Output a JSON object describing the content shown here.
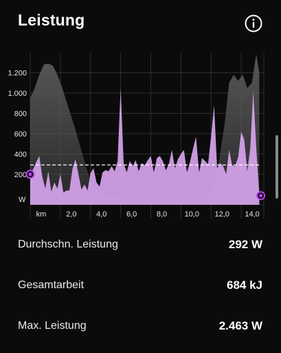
{
  "header": {
    "title": "Leistung",
    "info_icon": "info-circle-icon"
  },
  "chart_data": {
    "type": "area",
    "ylabel": "W",
    "xlabel": "km",
    "xlim": [
      0,
      15.5
    ],
    "ylim": [
      -100,
      1400
    ],
    "x_ticks": [
      0,
      2,
      4,
      6,
      8,
      10,
      12,
      14
    ],
    "x_tick_labels": [
      "km",
      "2,0",
      "4,0",
      "6,0",
      "8,0",
      "10,0",
      "12,0",
      "14,0"
    ],
    "y_ticks": [
      200,
      400,
      600,
      800,
      1000,
      1200
    ],
    "y_tick_labels": [
      "200",
      "400",
      "600",
      "800",
      "1.000",
      "1.200"
    ],
    "grid": true,
    "average_line": 292,
    "colors": {
      "power": "#d7a4ee",
      "elevation": "#5b5b5b",
      "marker": "#b845f0",
      "grid": "#2f2f2f",
      "average": "#ffffff"
    },
    "series": [
      {
        "kind": "power",
        "x": [
          0.0,
          0.2,
          0.4,
          0.6,
          0.8,
          1.0,
          1.2,
          1.4,
          1.6,
          1.8,
          2.0,
          2.2,
          2.4,
          2.6,
          2.8,
          3.0,
          3.2,
          3.4,
          3.6,
          3.8,
          4.0,
          4.2,
          4.4,
          4.6,
          4.8,
          5.0,
          5.2,
          5.4,
          5.6,
          5.8,
          6.0,
          6.2,
          6.4,
          6.6,
          6.8,
          7.0,
          7.2,
          7.4,
          7.6,
          7.8,
          8.0,
          8.2,
          8.4,
          8.6,
          8.8,
          9.0,
          9.2,
          9.4,
          9.6,
          9.8,
          10.0,
          10.2,
          10.4,
          10.6,
          10.8,
          11.0,
          11.2,
          11.4,
          11.6,
          11.8,
          12.0,
          12.2,
          12.4,
          12.6,
          12.8,
          13.0,
          13.2,
          13.4,
          13.6,
          13.8,
          14.0,
          14.2,
          14.4,
          14.6,
          14.8,
          15.0,
          15.2
        ],
        "values": [
          200,
          250,
          320,
          380,
          180,
          60,
          230,
          30,
          120,
          60,
          200,
          20,
          40,
          40,
          250,
          350,
          200,
          50,
          100,
          40,
          210,
          260,
          120,
          80,
          220,
          240,
          230,
          280,
          230,
          330,
          1050,
          310,
          220,
          330,
          280,
          340,
          230,
          310,
          290,
          340,
          380,
          220,
          360,
          380,
          330,
          240,
          300,
          440,
          260,
          350,
          400,
          440,
          220,
          320,
          450,
          570,
          220,
          360,
          330,
          300,
          570,
          880,
          260,
          310,
          280,
          200,
          440,
          290,
          280,
          370,
          620,
          540,
          230,
          460,
          1020,
          460,
          10
        ]
      },
      {
        "kind": "elevation",
        "x": [
          0.0,
          0.3,
          0.6,
          0.9,
          1.2,
          1.5,
          1.8,
          2.1,
          2.4,
          2.7,
          3.0,
          3.3,
          3.6,
          3.9,
          4.2,
          4.5,
          4.8,
          5.1,
          5.4,
          5.7,
          6.0,
          6.3,
          6.6,
          6.9,
          7.2,
          7.5,
          7.8,
          8.1,
          8.4,
          8.7,
          9.0,
          9.3,
          9.6,
          9.9,
          10.2,
          10.5,
          10.8,
          11.1,
          11.4,
          11.7,
          12.0,
          12.3,
          12.6,
          12.9,
          13.2,
          13.5,
          13.8,
          14.1,
          14.4,
          14.7,
          15.0,
          15.2
        ],
        "values": [
          950,
          1050,
          1180,
          1280,
          1290,
          1270,
          1180,
          1060,
          920,
          780,
          640,
          480,
          330,
          180,
          70,
          20,
          10,
          0,
          -10,
          -20,
          -30,
          -40,
          -40,
          -40,
          -40,
          -40,
          -40,
          -40,
          -40,
          -40,
          -40,
          -40,
          -40,
          -40,
          -40,
          -40,
          -40,
          -40,
          -40,
          -40,
          0,
          150,
          400,
          700,
          1100,
          1180,
          1120,
          1180,
          1050,
          1100,
          1380,
          1200
        ]
      }
    ],
    "markers": [
      {
        "x": 0.0,
        "y": 200
      },
      {
        "x": 15.3,
        "y": -10
      }
    ]
  },
  "stats": [
    {
      "label": "Durchschn. Leistung",
      "value": "292 W"
    },
    {
      "label": "Gesamtarbeit",
      "value": "684 kJ"
    },
    {
      "label": "Max. Leistung",
      "value": "2.463 W"
    }
  ]
}
